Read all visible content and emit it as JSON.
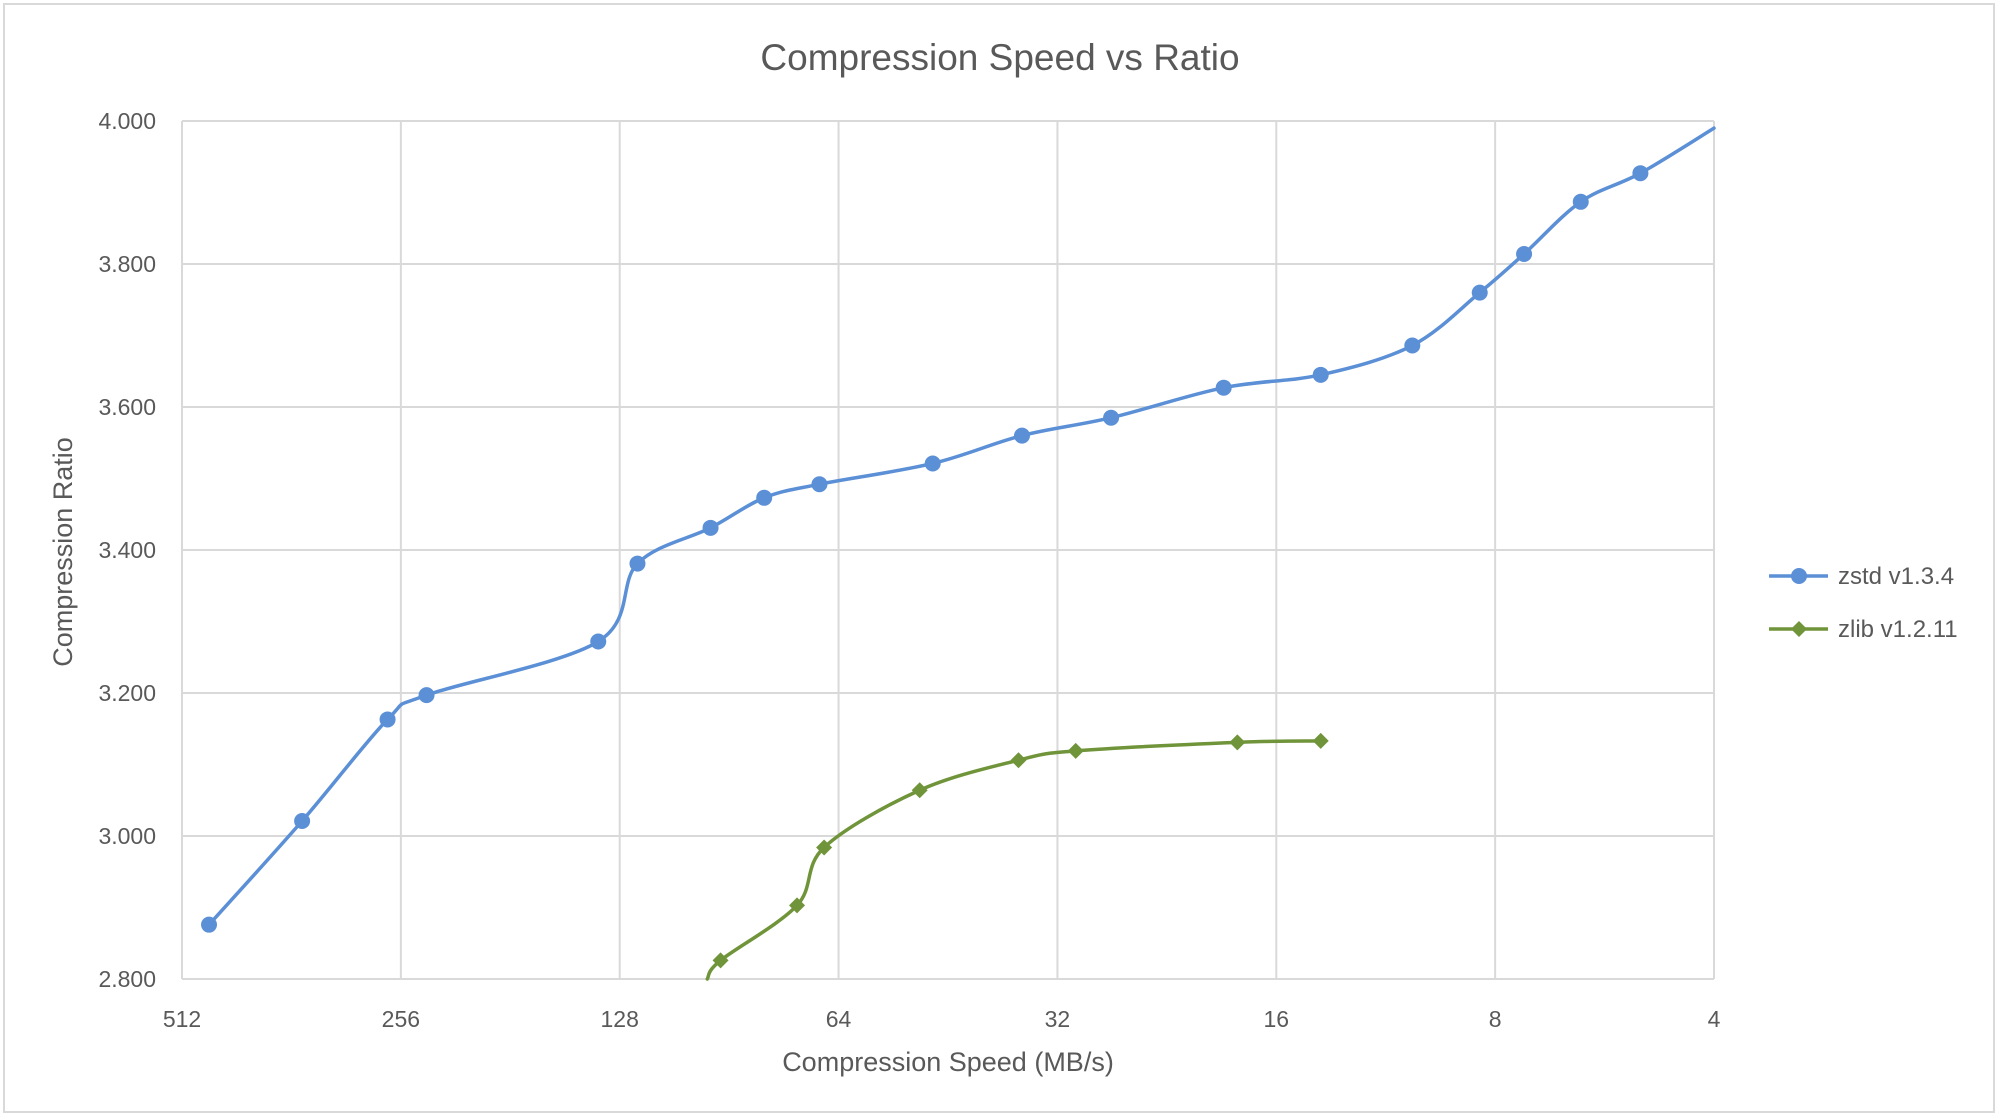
{
  "chart_data": {
    "type": "line",
    "title": "Compression Speed vs Ratio",
    "xlabel": "Compression Speed (MB/s)",
    "ylabel": "Compression Ratio",
    "x_scale": "log2-reversed",
    "xlim": [
      512,
      4
    ],
    "ylim": [
      2.8,
      4.0
    ],
    "x_ticks": [
      512,
      256,
      128,
      64,
      32,
      16,
      8,
      4
    ],
    "x_tick_labels": [
      "512",
      "256",
      "128",
      "64",
      "32",
      "16",
      "8",
      "4"
    ],
    "y_ticks": [
      2.8,
      3.0,
      3.2,
      3.4,
      3.6,
      3.8,
      4.0
    ],
    "y_tick_labels": [
      "2.800",
      "3.000",
      "3.200",
      "3.400",
      "3.600",
      "3.800",
      "4.000"
    ],
    "grid": true,
    "legend_position": "right",
    "series": [
      {
        "name": "zstd v1.3.4",
        "color": "#5B8FD6",
        "marker": "circle",
        "points": [
          {
            "x": 470,
            "y": 2.876
          },
          {
            "x": 350,
            "y": 3.021
          },
          {
            "x": 267,
            "y": 3.163
          },
          {
            "x": 236,
            "y": 3.197
          },
          {
            "x": 137,
            "y": 3.272
          },
          {
            "x": 121,
            "y": 3.381
          },
          {
            "x": 96,
            "y": 3.431
          },
          {
            "x": 81,
            "y": 3.473
          },
          {
            "x": 68,
            "y": 3.492
          },
          {
            "x": 47.5,
            "y": 3.521
          },
          {
            "x": 35.8,
            "y": 3.56
          },
          {
            "x": 27,
            "y": 3.585
          },
          {
            "x": 18.9,
            "y": 3.627
          },
          {
            "x": 13.9,
            "y": 3.645
          },
          {
            "x": 10.4,
            "y": 3.686
          },
          {
            "x": 8.4,
            "y": 3.76
          },
          {
            "x": 7.3,
            "y": 3.814
          },
          {
            "x": 6.1,
            "y": 3.887
          },
          {
            "x": 5.05,
            "y": 3.927
          }
        ],
        "line_extends_to": {
          "x": 4,
          "y": 3.99
        }
      },
      {
        "name": "zlib v1.2.11",
        "color": "#70943A",
        "marker": "diamond",
        "points": [
          {
            "x": 93,
            "y": 2.826
          },
          {
            "x": 73,
            "y": 2.903
          },
          {
            "x": 67,
            "y": 2.984
          },
          {
            "x": 49.5,
            "y": 3.064
          },
          {
            "x": 36.2,
            "y": 3.106
          },
          {
            "x": 30.2,
            "y": 3.119
          },
          {
            "x": 18.1,
            "y": 3.131
          },
          {
            "x": 13.9,
            "y": 3.133
          }
        ],
        "line_starts_from": {
          "x": 97,
          "y": 2.8
        }
      }
    ]
  }
}
